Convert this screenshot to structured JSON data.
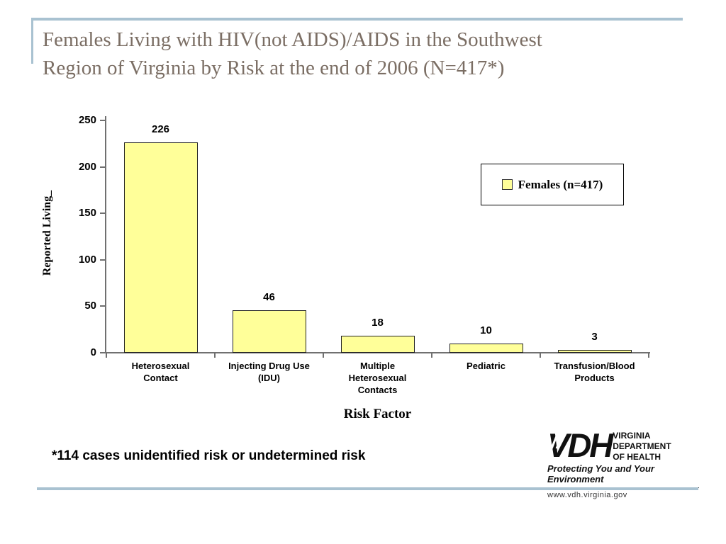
{
  "accent_color": "#a9c2d1",
  "title": {
    "line1": "Females Living with HIV(not AIDS)/AIDS in the Southwest",
    "line2": "Region of Virginia by Risk at the end of 2006 (N=417*)",
    "color": "#7b6e64"
  },
  "chart_data": {
    "type": "bar",
    "categories": [
      "Heterosexual Contact",
      "Injecting Drug Use (IDU)",
      "Multiple Heterosexual Contacts",
      "Pediatric",
      "Transfusion/Blood Products"
    ],
    "categories_wrapped": [
      [
        "Heterosexual",
        "Contact"
      ],
      [
        "Injecting Drug Use",
        "(IDU)"
      ],
      [
        "Multiple",
        "Heterosexual",
        "Contacts"
      ],
      [
        "Pediatric"
      ],
      [
        "Transfusion/Blood",
        "Products"
      ]
    ],
    "values": [
      226,
      46,
      18,
      10,
      3
    ],
    "xlabel": "Risk Factor",
    "ylabel": "Reported Living_",
    "ylim": [
      0,
      250
    ],
    "yticks": [
      0,
      50,
      100,
      150,
      200,
      250
    ],
    "grid": false,
    "legend_position": "upper right",
    "legend": {
      "label": "Females (n=417)"
    },
    "bar_fill": "#ffff99",
    "bar_border": "#222222",
    "axis_color": "#707070"
  },
  "footnote": {
    "text": "*114 cases unidentified risk or undetermined risk"
  },
  "logo": {
    "acronym": "VDH",
    "org_lines": [
      "VIRGINIA",
      "DEPARTMENT",
      "OF HEALTH"
    ],
    "tagline": "Protecting You and Your Environment",
    "url": "www.vdh.virginia.gov"
  }
}
